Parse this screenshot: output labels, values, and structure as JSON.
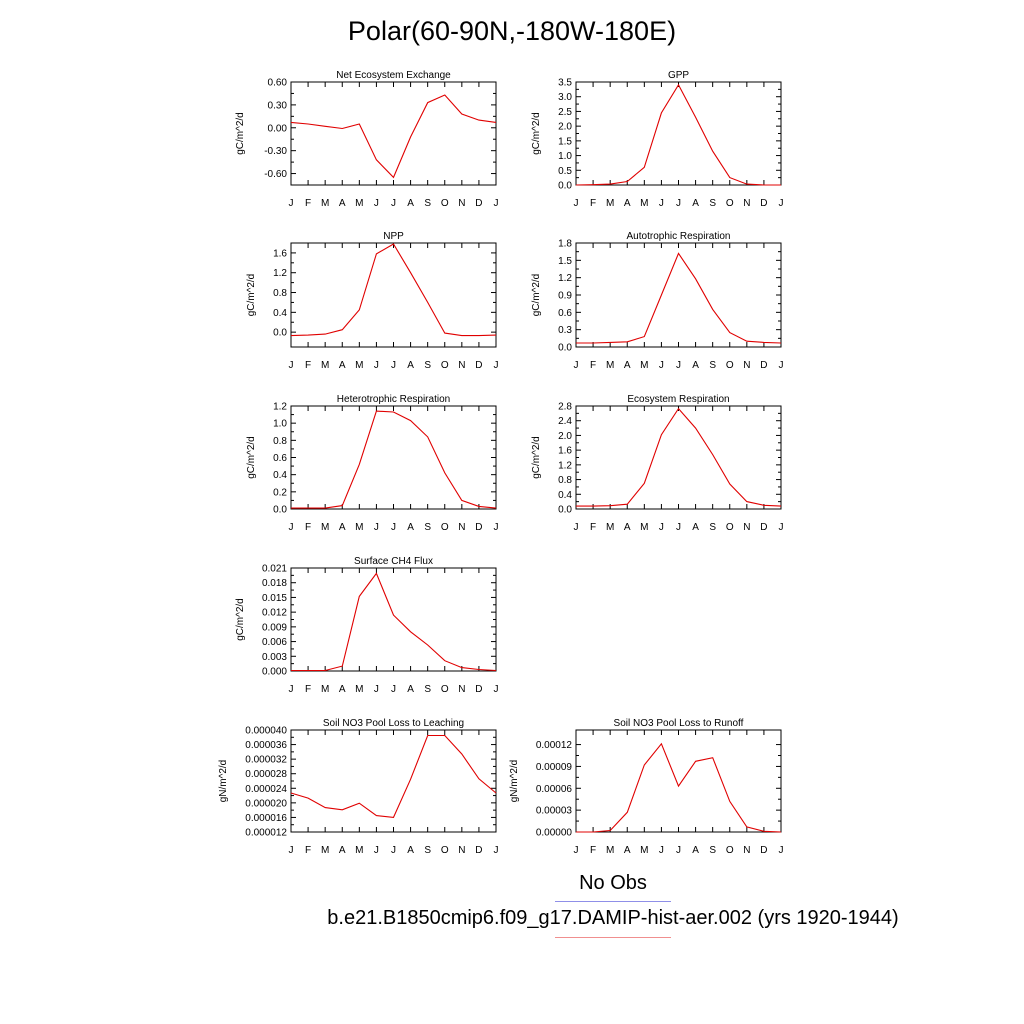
{
  "title": "Polar(60-90N,-180W-180E)",
  "legend": {
    "obs_label": "No Obs",
    "model_label": "b.e21.B1850cmip6.f09_g17.DAMIP-hist-aer.002 (yrs 1920-1944)",
    "obs_color": "#8f8fe8",
    "model_color": "#f08f8f"
  },
  "line_color": "#e00000",
  "months": [
    "J",
    "F",
    "M",
    "A",
    "M",
    "J",
    "J",
    "A",
    "S",
    "O",
    "N",
    "D",
    "J"
  ],
  "chart_data": [
    {
      "type": "line",
      "title": "Net Ecosystem Exchange",
      "ylabel": "gC/m^2/d",
      "ylim": [
        -0.75,
        0.6
      ],
      "yticks": [
        -0.6,
        -0.3,
        0.0,
        0.3,
        0.6
      ],
      "yticklabels": [
        "-0.60",
        "-0.30",
        "0.00",
        "0.30",
        "0.60"
      ],
      "series": [
        {
          "values": [
            0.07,
            0.05,
            0.02,
            -0.01,
            0.05,
            -0.42,
            -0.65,
            -0.12,
            0.33,
            0.43,
            0.18,
            0.1,
            0.07
          ]
        }
      ]
    },
    {
      "type": "line",
      "title": "GPP",
      "ylabel": "gC/m^2/d",
      "ylim": [
        0,
        3.5
      ],
      "yticks": [
        0,
        0.5,
        1.0,
        1.5,
        2.0,
        2.5,
        3.0,
        3.5
      ],
      "yticklabels": [
        "0.0",
        "0.5",
        "1.0",
        "1.5",
        "2.0",
        "2.5",
        "3.0",
        "3.5"
      ],
      "series": [
        {
          "values": [
            0.0,
            0.01,
            0.03,
            0.12,
            0.6,
            2.45,
            3.4,
            2.3,
            1.15,
            0.25,
            0.03,
            0.0,
            0.0
          ]
        }
      ]
    },
    {
      "type": "line",
      "title": "NPP",
      "ylabel": "gC/m^2/d",
      "ylim": [
        -0.3,
        1.8
      ],
      "yticks": [
        0.0,
        0.4,
        0.8,
        1.2,
        1.6
      ],
      "yticklabels": [
        "0.0",
        "0.4",
        "0.8",
        "1.2",
        "1.6"
      ],
      "series": [
        {
          "values": [
            -0.07,
            -0.06,
            -0.04,
            0.05,
            0.45,
            1.58,
            1.78,
            1.2,
            0.6,
            -0.02,
            -0.07,
            -0.07,
            -0.06
          ]
        }
      ]
    },
    {
      "type": "line",
      "title": "Autotrophic Respiration",
      "ylabel": "gC/m^2/d",
      "ylim": [
        0,
        1.8
      ],
      "yticks": [
        0,
        0.3,
        0.6,
        0.9,
        1.2,
        1.5,
        1.8
      ],
      "yticklabels": [
        "0.0",
        "0.3",
        "0.6",
        "0.9",
        "1.2",
        "1.5",
        "1.8"
      ],
      "series": [
        {
          "values": [
            0.07,
            0.07,
            0.08,
            0.09,
            0.18,
            0.9,
            1.62,
            1.18,
            0.65,
            0.25,
            0.1,
            0.08,
            0.07
          ]
        }
      ]
    },
    {
      "type": "line",
      "title": "Heterotrophic Respiration",
      "ylabel": "gC/m^2/d",
      "ylim": [
        0,
        1.2
      ],
      "yticks": [
        0,
        0.2,
        0.4,
        0.6,
        0.8,
        1.0,
        1.2
      ],
      "yticklabels": [
        "0.0",
        "0.2",
        "0.4",
        "0.6",
        "0.8",
        "1.0",
        "1.2"
      ],
      "series": [
        {
          "values": [
            0.01,
            0.01,
            0.01,
            0.04,
            0.52,
            1.14,
            1.13,
            1.03,
            0.84,
            0.42,
            0.1,
            0.03,
            0.01
          ]
        }
      ]
    },
    {
      "type": "line",
      "title": "Ecosystem Respiration",
      "ylabel": "gC/m^2/d",
      "ylim": [
        0,
        2.8
      ],
      "yticks": [
        0,
        0.4,
        0.8,
        1.2,
        1.6,
        2.0,
        2.4,
        2.8
      ],
      "yticklabels": [
        "0.0",
        "0.4",
        "0.8",
        "1.2",
        "1.6",
        "2.0",
        "2.4",
        "2.8"
      ],
      "series": [
        {
          "values": [
            0.08,
            0.08,
            0.09,
            0.13,
            0.7,
            2.02,
            2.73,
            2.2,
            1.48,
            0.68,
            0.2,
            0.1,
            0.08
          ]
        }
      ]
    },
    {
      "type": "line",
      "title": "Surface CH4 Flux",
      "ylabel": "gC/m^2/d",
      "ylim": [
        0,
        0.021
      ],
      "yticks": [
        0,
        0.003,
        0.006,
        0.009,
        0.012,
        0.015,
        0.018,
        0.021
      ],
      "yticklabels": [
        "0.000",
        "0.003",
        "0.006",
        "0.009",
        "0.012",
        "0.015",
        "0.018",
        "0.021"
      ],
      "series": [
        {
          "values": [
            0.0001,
            0.0001,
            0.0001,
            0.001,
            0.0152,
            0.0199,
            0.0114,
            0.008,
            0.0053,
            0.0021,
            0.0007,
            0.0003,
            0.0001
          ]
        }
      ]
    },
    {
      "type": "line",
      "title": "Soil NO3 Pool Loss to Leaching",
      "ylabel": "gN/m^2/d",
      "ylim": [
        1.2e-05,
        4e-05
      ],
      "yticks": [
        1.2e-05,
        1.6e-05,
        2e-05,
        2.4e-05,
        2.8e-05,
        3.2e-05,
        3.6e-05,
        4e-05
      ],
      "yticklabels": [
        "0.000012",
        "0.000016",
        "0.000020",
        "0.000024",
        "0.000028",
        "0.000032",
        "0.000036",
        "0.000040"
      ],
      "series": [
        {
          "values": [
            2.27e-05,
            2.13e-05,
            1.87e-05,
            1.81e-05,
            1.99e-05,
            1.65e-05,
            1.6e-05,
            2.65e-05,
            3.85e-05,
            3.85e-05,
            3.34e-05,
            2.66e-05,
            2.27e-05
          ]
        }
      ]
    },
    {
      "type": "line",
      "title": "Soil NO3 Pool Loss to Runoff",
      "ylabel": "gN/m^2/d",
      "ylim": [
        0,
        0.00014
      ],
      "yticks": [
        0,
        3e-05,
        6e-05,
        9e-05,
        0.00012
      ],
      "yticklabels": [
        "0.00000",
        "0.00003",
        "0.00006",
        "0.00009",
        "0.00012"
      ],
      "series": [
        {
          "values": [
            0.0,
            0.0,
            2e-06,
            2.7e-05,
            9.2e-05,
            0.000121,
            6.3e-05,
            9.7e-05,
            0.000102,
            4.2e-05,
            7e-06,
            1e-06,
            0.0
          ]
        }
      ]
    }
  ]
}
